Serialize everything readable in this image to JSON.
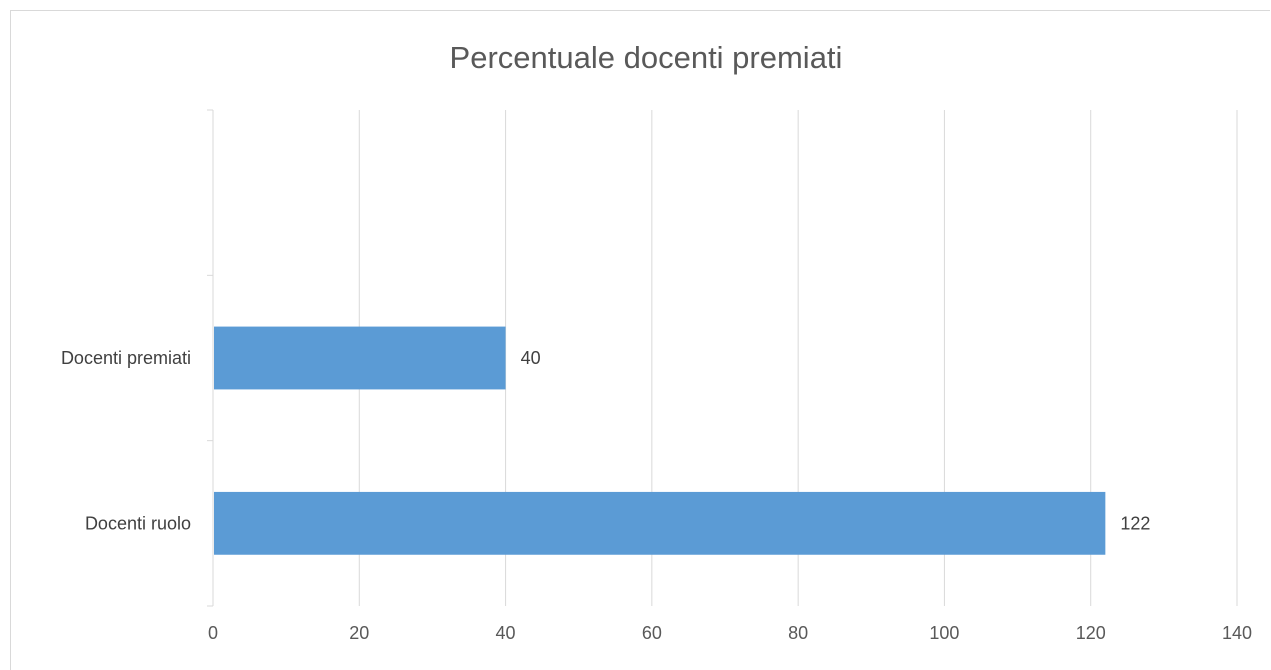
{
  "chart_data": {
    "type": "bar",
    "orientation": "horizontal",
    "title": "Percentuale docenti premiati",
    "categories": [
      "Docenti premiati",
      "Docenti ruolo"
    ],
    "values": [
      40,
      122
    ],
    "data_labels": [
      "40",
      "122"
    ],
    "xlim": [
      0,
      140
    ],
    "x_ticks": [
      0,
      20,
      40,
      60,
      80,
      100,
      120,
      140
    ],
    "x_tick_labels": [
      "0",
      "20",
      "40",
      "60",
      "80",
      "100",
      "120",
      "140"
    ],
    "grid": true,
    "legend": "none",
    "bar_color": "#5b9bd5",
    "grid_color": "#d9d9d9"
  }
}
